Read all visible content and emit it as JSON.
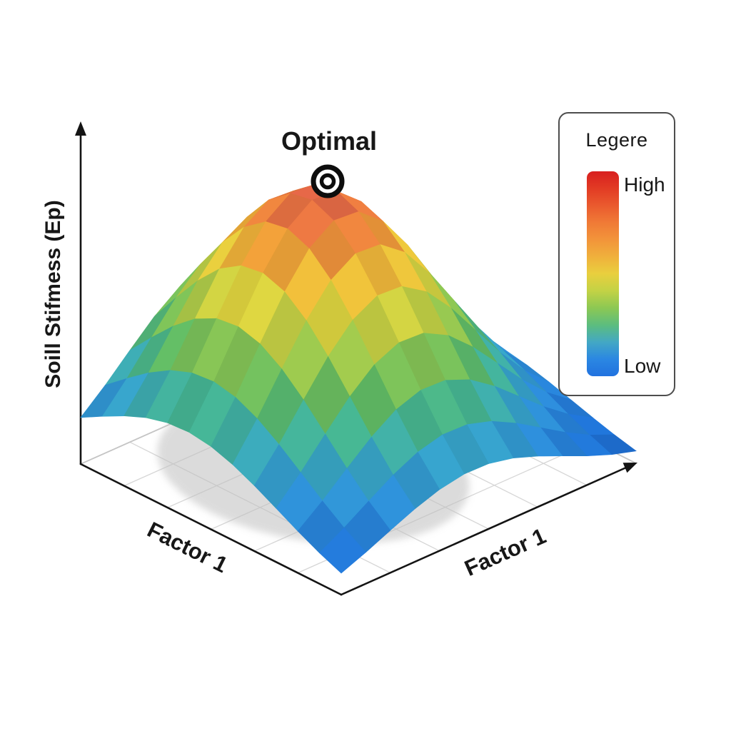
{
  "page": {
    "background": "#ffffff"
  },
  "chart_data": {
    "type": "surface",
    "title": "",
    "z_axis_label": "Soill Stifmess (Ep)",
    "x_left_label": "Factor 1",
    "x_right_label": "Factor 1",
    "annotation": {
      "label": "Optimal",
      "at": "peak",
      "marker": "bullseye"
    },
    "surface": {
      "model": "gaussian_peak",
      "grid_n": 12,
      "u_range": [
        0,
        1
      ],
      "v_range": [
        0,
        1
      ],
      "peak_u": 0.6,
      "peak_v": 0.45,
      "sigma_u": 0.36,
      "sigma_v": 0.3,
      "peak_value": 1.0,
      "base_value": 0.0,
      "floor_grid_divisions": 6
    },
    "colormap": [
      {
        "t": 0.0,
        "color": "#1a63cf"
      },
      {
        "t": 0.1,
        "color": "#2177dc"
      },
      {
        "t": 0.2,
        "color": "#2d8edf"
      },
      {
        "t": 0.3,
        "color": "#38a7cd"
      },
      {
        "t": 0.4,
        "color": "#47b893"
      },
      {
        "t": 0.48,
        "color": "#63bf66"
      },
      {
        "t": 0.56,
        "color": "#8cc754"
      },
      {
        "t": 0.64,
        "color": "#bcd148"
      },
      {
        "t": 0.72,
        "color": "#e6d83f"
      },
      {
        "t": 0.79,
        "color": "#f2c33b"
      },
      {
        "t": 0.86,
        "color": "#f3a03a"
      },
      {
        "t": 0.93,
        "color": "#f07e41"
      },
      {
        "t": 1.0,
        "color": "#e4604b"
      }
    ],
    "legend": {
      "title": "Legere",
      "high": "High",
      "low": "Low",
      "gradient_top_to_bottom": [
        "#d81f1f",
        "#e23b24",
        "#ea5a2e",
        "#f07a36",
        "#f2943a",
        "#f0b03c",
        "#e9cf3e",
        "#c3d245",
        "#8cc853",
        "#5cbd7e",
        "#43a8c4",
        "#2b87e2",
        "#2172df"
      ]
    },
    "colors": {
      "axis": "#141414",
      "floor_grid": "#d6d6d6",
      "floor_back_edge": "#c4c4c4",
      "shadow": "#bfbfbf",
      "marker": "#0d0d0d"
    }
  }
}
